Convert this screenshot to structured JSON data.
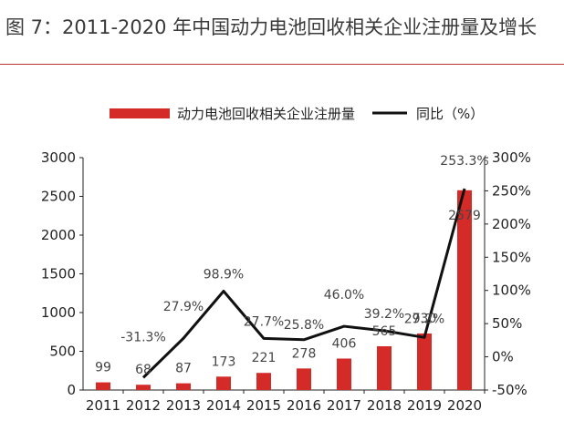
{
  "title": "图 7：2011-2020 年中国动力电池回收相关企业注册量及增长",
  "colors": {
    "bar": "#d42a28",
    "line": "#111111",
    "rule": "#c0302f"
  },
  "chart_data": {
    "type": "bar",
    "categories": [
      "2011",
      "2012",
      "2013",
      "2014",
      "2015",
      "2016",
      "2017",
      "2018",
      "2019",
      "2020"
    ],
    "series": [
      {
        "name": "动力电池回收相关企业注册量",
        "type": "bar",
        "axis": "left",
        "values": [
          99,
          68,
          87,
          173,
          221,
          278,
          406,
          565,
          730,
          2579
        ],
        "labels": [
          "99",
          "68",
          "87",
          "173",
          "221",
          "278",
          "406",
          "565",
          "730",
          "2579"
        ]
      },
      {
        "name": "同比（%）",
        "type": "line",
        "axis": "right",
        "values": [
          null,
          -31.3,
          27.9,
          98.9,
          27.7,
          25.8,
          46.0,
          39.2,
          29.2,
          253.3
        ],
        "labels": [
          "",
          "-31.3%",
          "27.9%",
          "98.9%",
          "27.7%",
          "25.8%",
          "46.0%",
          "39.2%",
          "29.2%",
          "253.3%"
        ]
      }
    ],
    "y_left": {
      "min": 0,
      "max": 3000,
      "ticks": [
        "0",
        "500",
        "1000",
        "1500",
        "2000",
        "2500",
        "3000"
      ],
      "tick_values": [
        0,
        500,
        1000,
        1500,
        2000,
        2500,
        3000
      ]
    },
    "y_right": {
      "min": -50,
      "max": 300,
      "ticks": [
        "-50%",
        "0%",
        "50%",
        "100%",
        "150%",
        "200%",
        "250%",
        "300%"
      ],
      "tick_values": [
        -50,
        0,
        50,
        100,
        150,
        200,
        250,
        300
      ]
    },
    "legend_position": "top",
    "grid": false
  }
}
